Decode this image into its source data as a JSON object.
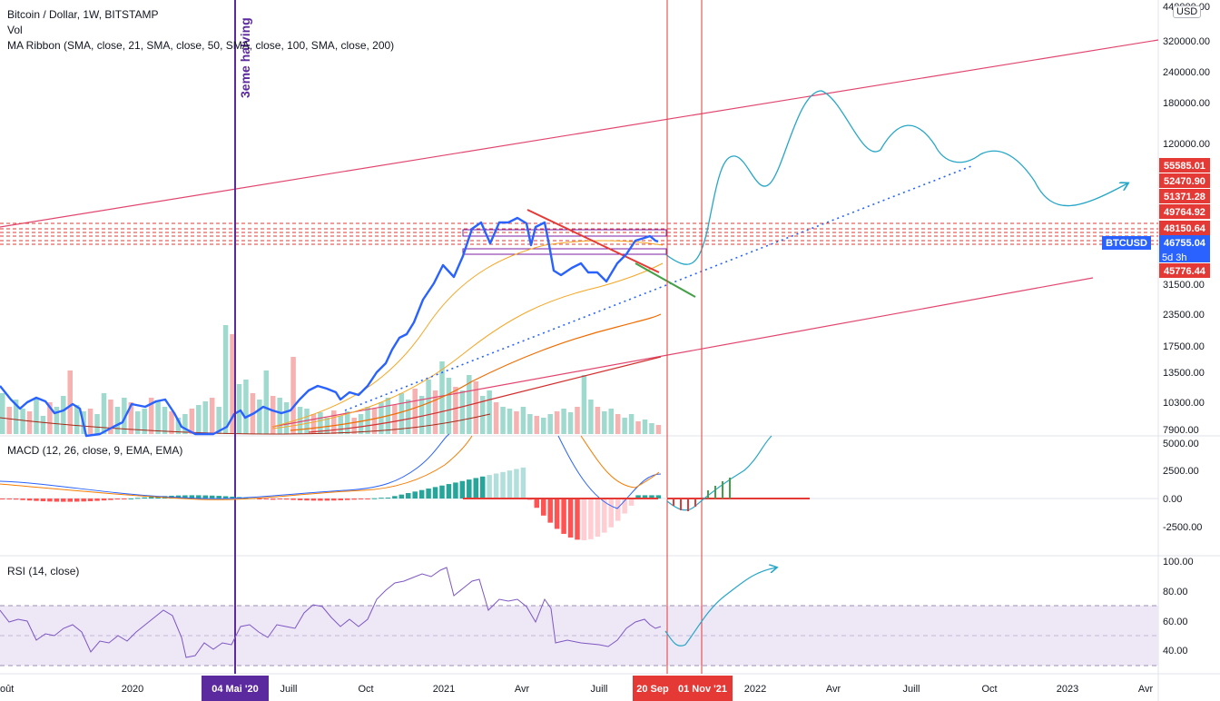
{
  "legends": {
    "main_title": "Bitcoin / Dollar, 1W, BITSTAMP",
    "vol": "Vol",
    "ma_ribbon": "MA Ribbon (SMA, close, 21, SMA, close, 50, SMA, close, 100, SMA, close, 200)",
    "macd": "MACD (12, 26, close, 9, EMA, EMA)",
    "rsi": "RSI (14, close)"
  },
  "currency_button": "USD",
  "annotations": {
    "halving": "3eme halving",
    "symbol": "BTCUSD",
    "countdown": "5d 3h"
  },
  "colors": {
    "price_line": "#2962ff",
    "projection": "#26a6c7",
    "volume_up": "#8fd3c7",
    "volume_down": "#f5a3a3",
    "channel": "#e2466f",
    "level": "#e53935",
    "macd_hist_up_strong": "#26a69a",
    "macd_hist_up_weak": "#b2dfdb",
    "macd_hist_down_strong": "#ff5252",
    "macd_hist_down_weak": "#ffcdd2",
    "rsi_line": "#7e57c2",
    "rsi_band": "#ede7f6",
    "halving_marker": "#5b2a9e"
  },
  "chart_data": [
    {
      "type": "line",
      "panel": "price",
      "title": "Bitcoin / Dollar, 1W, BITSTAMP",
      "y_scale": "log",
      "y_ticks": [
        "440000.00",
        "320000.00",
        "240000.00",
        "180000.00",
        "120000.00",
        "31500.00",
        "23500.00",
        "17500.00",
        "13500.00",
        "10300.00",
        "7900.00"
      ],
      "x_ticks": [
        "Août",
        "2020",
        "Juill",
        "Oct",
        "2021",
        "Avr",
        "Juill",
        "2022",
        "Avr",
        "Juill",
        "Oct",
        "2023",
        "Avr"
      ],
      "x_highlight_labels": [
        {
          "label": "04 Mai '20",
          "color": "#5b2a9e"
        },
        {
          "label": "20 Sep",
          "color": "#e53935"
        },
        {
          "label": "01 Nov '21",
          "color": "#e53935"
        }
      ],
      "price_levels": [
        {
          "label": "55585.01",
          "color": "#e53935"
        },
        {
          "label": "52470.90",
          "color": "#e53935"
        },
        {
          "label": "51371.28",
          "color": "#e53935"
        },
        {
          "label": "49764.92",
          "color": "#e53935"
        },
        {
          "label": "48150.64",
          "color": "#e53935"
        },
        {
          "label": "46755.04",
          "color": "#2962ff"
        },
        {
          "label": "45776.44",
          "color": "#e53935"
        }
      ],
      "series": [
        {
          "name": "BTCUSD",
          "x": [
            "2019-07-22",
            "2019-08-19",
            "2019-09-23",
            "2019-10-28",
            "2019-11-25",
            "2019-12-23",
            "2020-01-20",
            "2020-02-17",
            "2020-03-16",
            "2020-04-13",
            "2020-05-11",
            "2020-06-15",
            "2020-07-20",
            "2020-08-17",
            "2020-09-21",
            "2020-10-19",
            "2020-11-16",
            "2020-12-14",
            "2021-01-04",
            "2021-01-25",
            "2021-02-15",
            "2021-03-15",
            "2021-04-12",
            "2021-05-10",
            "2021-05-31",
            "2021-06-21",
            "2021-07-19",
            "2021-08-16",
            "2021-09-06",
            "2021-09-20"
          ],
          "y": [
            10500,
            10000,
            8400,
            9300,
            7200,
            7300,
            8800,
            9700,
            5800,
            7100,
            9500,
            9400,
            9200,
            11700,
            10800,
            11500,
            17800,
            21500,
            31000,
            33000,
            48000,
            58000,
            57000,
            47000,
            35000,
            34000,
            32000,
            47000,
            46000,
            46755
          ]
        }
      ],
      "projection": {
        "x": [
          "2021-09-27",
          "2021-10-25",
          "2021-11-29",
          "2021-12-27",
          "2022-02-07",
          "2022-03-14",
          "2022-05-16",
          "2022-07-04",
          "2022-08-29",
          "2022-10-17",
          "2022-12-19",
          "2023-02-20"
        ],
        "y": [
          43000,
          48000,
          140000,
          95000,
          160000,
          200000,
          110000,
          140000,
          100000,
          115000,
          60000,
          72000
        ]
      }
    },
    {
      "type": "bar",
      "panel": "macd",
      "title": "MACD (12, 26, close, 9, EMA, EMA)",
      "y_ticks": [
        "5000.00",
        "2500.00",
        "0.00",
        "-2500.00"
      ],
      "x": [
        "2019-07",
        "2019-10",
        "2020-01",
        "2020-04",
        "2020-07",
        "2020-10",
        "2020-12",
        "2021-01",
        "2021-02",
        "2021-03",
        "2021-04",
        "2021-05",
        "2021-06",
        "2021-07",
        "2021-08",
        "2021-09"
      ],
      "histogram": [
        300,
        -100,
        -100,
        -300,
        50,
        300,
        800,
        1600,
        2300,
        2800,
        1700,
        -1900,
        -2700,
        -1500,
        500,
        300
      ],
      "macd": [
        1200,
        200,
        -200,
        -300,
        200,
        400,
        1300,
        3800,
        6500,
        7500,
        6000,
        1000,
        -1400,
        -1200,
        1500,
        2200
      ],
      "signal": [
        1000,
        350,
        -100,
        -250,
        100,
        300,
        900,
        2500,
        5000,
        6500,
        6500,
        3000,
        500,
        -800,
        600,
        2000
      ]
    },
    {
      "type": "line",
      "panel": "rsi",
      "title": "RSI (14, close)",
      "y_ticks": [
        "100.00",
        "80.00",
        "60.00",
        "40.00"
      ],
      "x": [
        "2019-07",
        "2019-10",
        "2020-01",
        "2020-03",
        "2020-05",
        "2020-07",
        "2020-09",
        "2020-11",
        "2020-12",
        "2021-01",
        "2021-02",
        "2021-03",
        "2021-04",
        "2021-05",
        "2021-06",
        "2021-07",
        "2021-08",
        "2021-09"
      ],
      "y": [
        62,
        45,
        50,
        34,
        50,
        62,
        55,
        72,
        84,
        92,
        78,
        80,
        68,
        44,
        48,
        40,
        60,
        55
      ],
      "bands": [
        70,
        30
      ],
      "projection_y": [
        55,
        42,
        60,
        75,
        88,
        95
      ]
    }
  ]
}
